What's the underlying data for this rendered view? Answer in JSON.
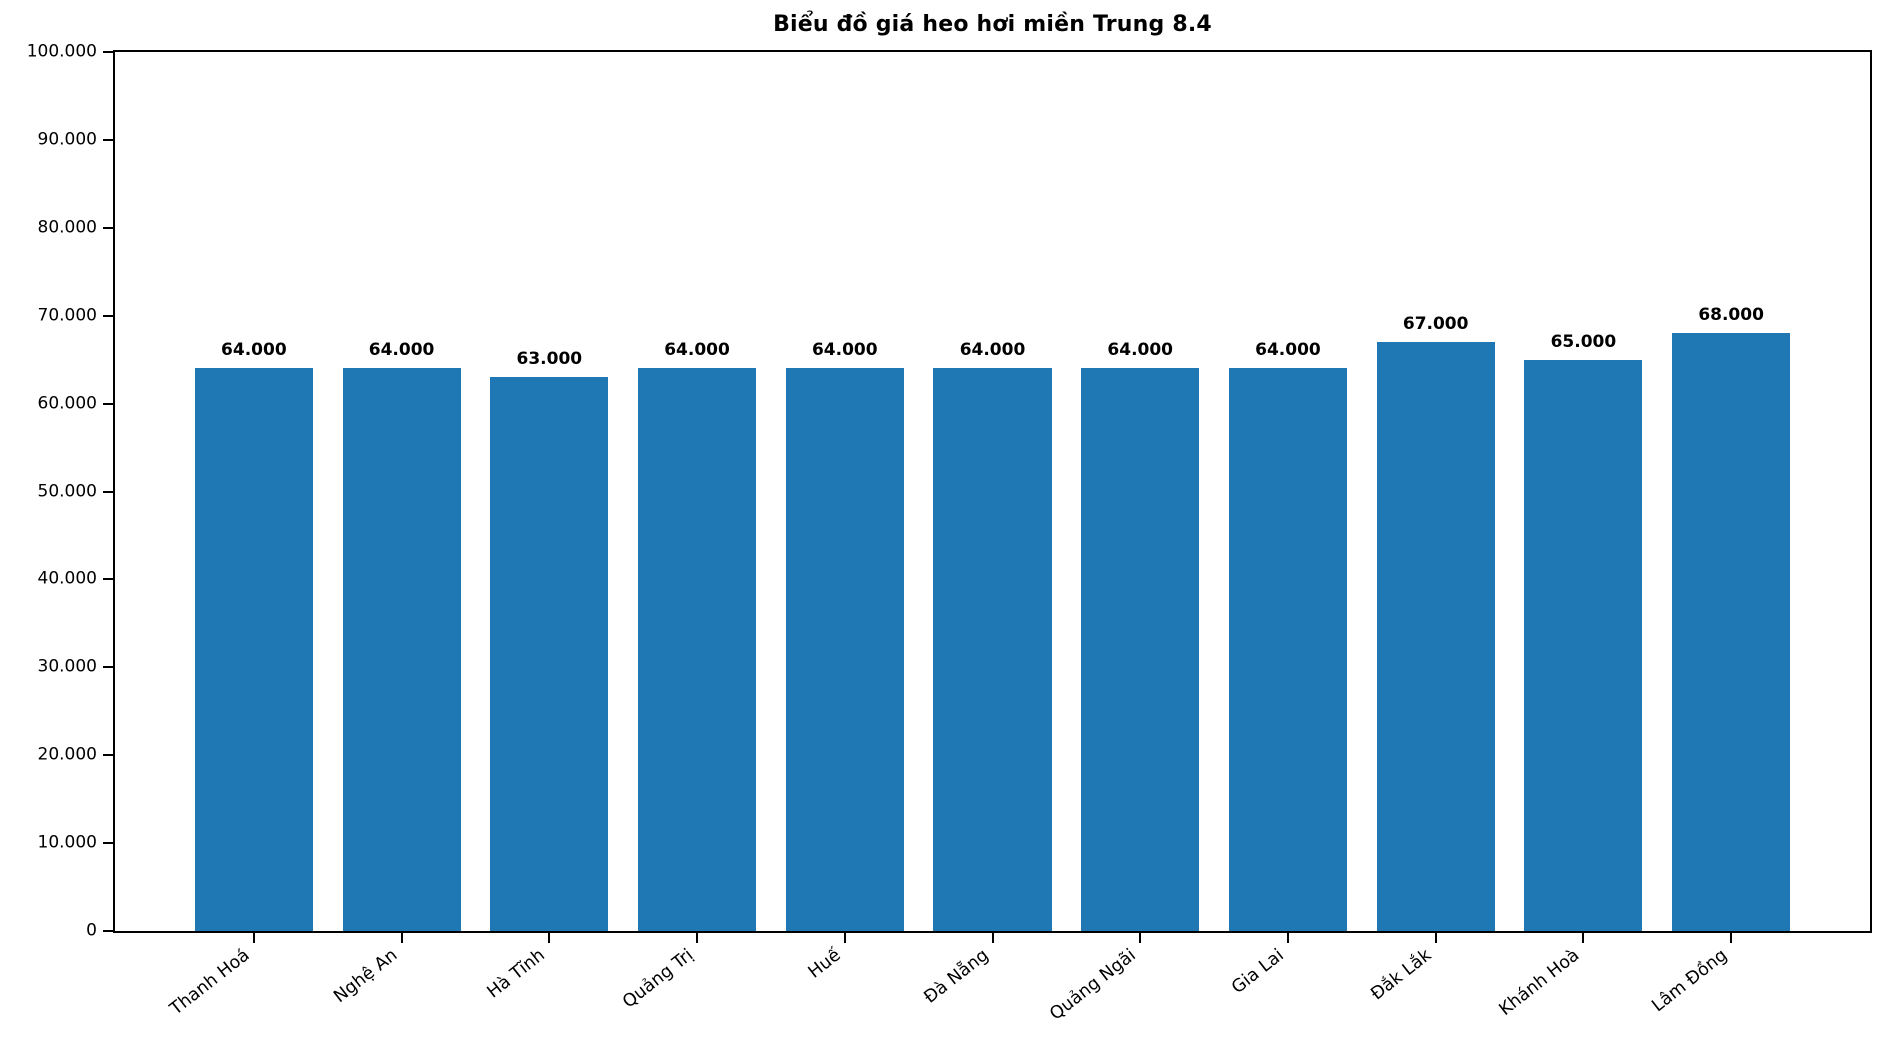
{
  "figure": {
    "background": "#ffffff"
  },
  "chart_data": {
    "type": "bar",
    "title": "Biểu đồ giá heo hơi miền Trung 8.4",
    "categories": [
      "Thanh Hoá",
      "Nghệ An",
      "Hà Tĩnh",
      "Quảng Trị",
      "Huế",
      "Đà Nẵng",
      "Quảng Ngãi",
      "Gia Lai",
      "Đắk Lắk",
      "Khánh Hoà",
      "Lâm Đồng"
    ],
    "values": [
      64000,
      64000,
      63000,
      64000,
      64000,
      64000,
      64000,
      64000,
      67000,
      65000,
      68000
    ],
    "value_labels": [
      "64.000",
      "64.000",
      "63.000",
      "64.000",
      "64.000",
      "64.000",
      "64.000",
      "64.000",
      "67.000",
      "65.000",
      "68.000"
    ],
    "xlabel": "",
    "ylabel": "",
    "ylim": [
      0,
      100000
    ],
    "yticks": [
      0,
      10000,
      20000,
      30000,
      40000,
      50000,
      60000,
      70000,
      80000,
      90000,
      100000
    ],
    "ytick_labels": [
      "0",
      "10.000",
      "20.000",
      "30.000",
      "40.000",
      "50.000",
      "60.000",
      "70.000",
      "80.000",
      "90.000",
      "100.000"
    ],
    "bar_color": "#1f77b4",
    "axis_color": "#000000",
    "grid": false,
    "legend_position": "none",
    "bar_width_fraction": 0.8,
    "x_margin_fraction": 0.05,
    "xtick_rotation_deg": 38
  }
}
